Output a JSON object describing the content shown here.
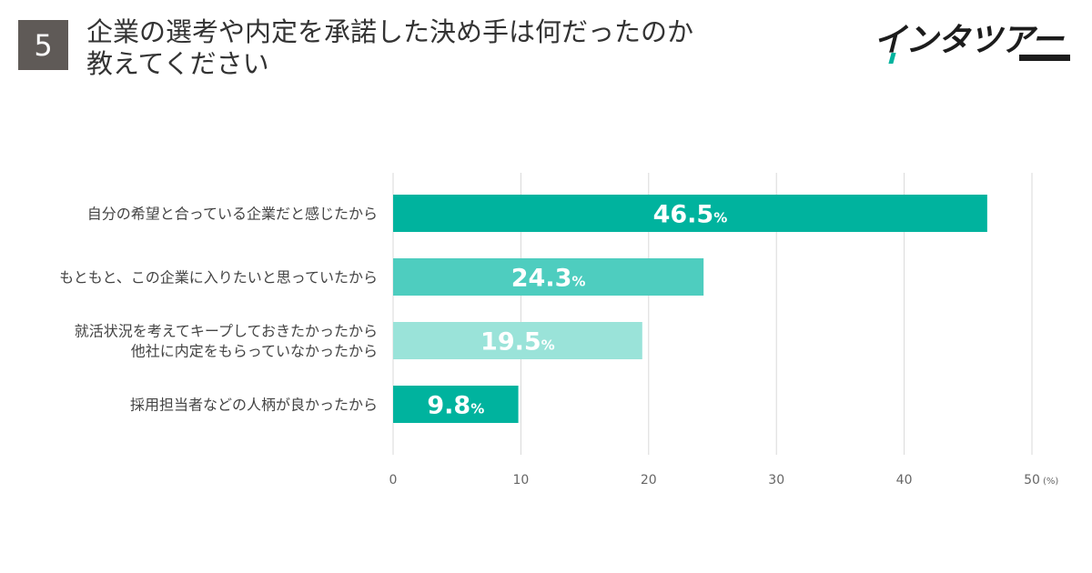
{
  "header": {
    "question_number": "5",
    "title_lines": [
      "企業の選考や内定を承諾した決め手は何だったのか",
      "教えてください"
    ],
    "logo_text": "インタツアー"
  },
  "colors": {
    "badge": "#5f5a57",
    "logo_accent": "#00b39e",
    "grid": "#d9d9d9"
  },
  "chart_data": {
    "type": "bar",
    "orientation": "horizontal",
    "categories": [
      [
        "自分の希望と合っている企業だと感じたから"
      ],
      [
        "もともと、この企業に入りたいと思っていたから"
      ],
      [
        "就活状況を考えてキープしておきたかったから",
        "他社に内定をもらっていなかったから"
      ],
      [
        "採用担当者などの人柄が良かったから"
      ]
    ],
    "values": [
      46.5,
      24.3,
      19.5,
      9.8
    ],
    "value_labels": [
      "46.5",
      "24.3",
      "19.5",
      "9.8"
    ],
    "value_suffix": "%",
    "bar_colors": [
      "#00b39e",
      "#4ecdbf",
      "#9ae3d9",
      "#00b39e"
    ],
    "xlim": [
      0,
      50
    ],
    "xticks": [
      0,
      10,
      20,
      30,
      40,
      50
    ],
    "xtick_labels": [
      "0",
      "10",
      "20",
      "30",
      "40",
      "50"
    ],
    "unit_label": "(%)",
    "grid": true,
    "legend": "none"
  }
}
